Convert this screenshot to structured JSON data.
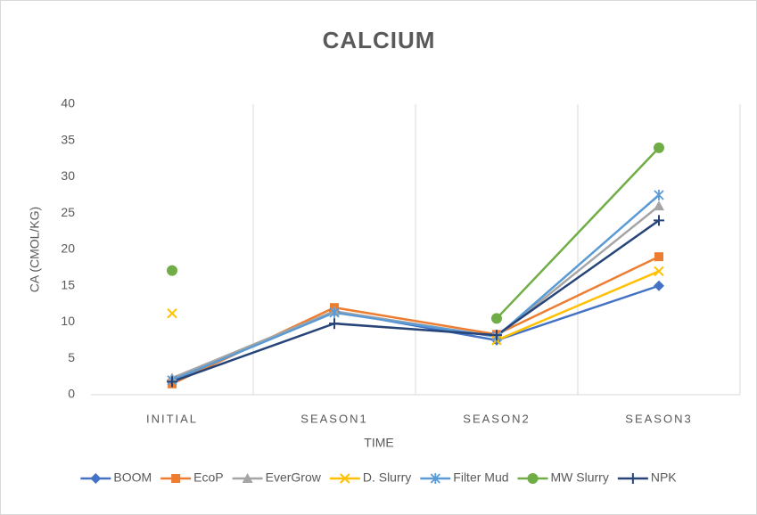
{
  "chart_data": {
    "type": "line",
    "title": "CALCIUM",
    "x_label": "TIME",
    "y_label": "CA (CMOL/KG)",
    "categories": [
      "INITIAL",
      "SEASON1",
      "SEASON2",
      "SEASON3"
    ],
    "ylim": [
      0,
      40
    ],
    "yticks": [
      0,
      5,
      10,
      15,
      20,
      25,
      30,
      35,
      40
    ],
    "x_grid": true,
    "y_grid": false,
    "legend": "bottom",
    "series": [
      {
        "name": "BOOM",
        "color": "#4472c4",
        "marker": "diamond",
        "values": [
          2,
          11.5,
          7.5,
          15
        ]
      },
      {
        "name": "EcoP",
        "color": "#ed7d31",
        "marker": "square",
        "values": [
          1.5,
          12,
          8.3,
          19
        ]
      },
      {
        "name": "EverGrow",
        "color": "#a5a5a5",
        "marker": "triangle",
        "values": [
          2.3,
          11.5,
          8,
          26
        ]
      },
      {
        "name": "D. Slurry",
        "color": "#ffc000",
        "marker": "x",
        "values": [
          11.2,
          null,
          7.5,
          17
        ]
      },
      {
        "name": "Filter Mud",
        "color": "#5b9bd5",
        "marker": "star",
        "values": [
          2,
          11.3,
          8,
          27.5
        ]
      },
      {
        "name": "MW Slurry",
        "color": "#70ad47",
        "marker": "circle",
        "values": [
          17.1,
          null,
          10.5,
          34
        ]
      },
      {
        "name": "NPK",
        "color": "#264478",
        "marker": "plus",
        "values": [
          1.8,
          9.8,
          8.2,
          24
        ]
      }
    ]
  }
}
